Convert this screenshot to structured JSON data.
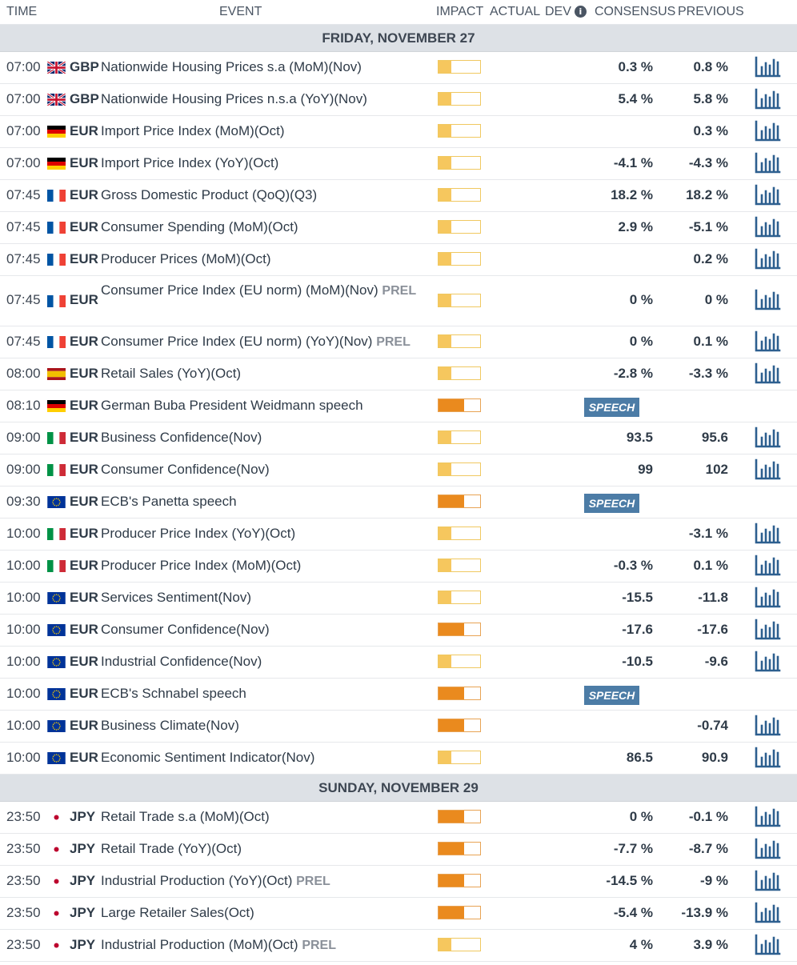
{
  "columns": {
    "time": "TIME",
    "event": "EVENT",
    "impact": "IMPACT",
    "actual": "ACTUAL",
    "dev": "DEV",
    "consensus": "CONSENSUS",
    "previous": "PREVIOUS"
  },
  "colors": {
    "impact_low": "#f6c75e",
    "impact_medium": "#ea8a1e",
    "speech_badge": "#4c7ca6",
    "chart_icon": "#2d5f8f"
  },
  "days": [
    {
      "label": "FRIDAY, NOVEMBER 27",
      "events": [
        {
          "time": "07:00",
          "flag": "gb-flag",
          "currency": "GBP",
          "name": "Nationwide Housing Prices s.a (MoM)(Nov)",
          "impact": "low",
          "consensus": "0.3 %",
          "previous": "0.8 %",
          "chart": true
        },
        {
          "time": "07:00",
          "flag": "gb-flag",
          "currency": "GBP",
          "name": "Nationwide Housing Prices n.s.a (YoY)(Nov)",
          "impact": "low",
          "consensus": "5.4 %",
          "previous": "5.8 %",
          "chart": true
        },
        {
          "time": "07:00",
          "flag": "de-flag",
          "currency": "EUR",
          "name": "Import Price Index (MoM)(Oct)",
          "impact": "low",
          "consensus": "",
          "previous": "0.3 %",
          "chart": true
        },
        {
          "time": "07:00",
          "flag": "de-flag",
          "currency": "EUR",
          "name": "Import Price Index (YoY)(Oct)",
          "impact": "low",
          "consensus": "-4.1 %",
          "previous": "-4.3 %",
          "chart": true
        },
        {
          "time": "07:45",
          "flag": "fr-flag",
          "currency": "EUR",
          "name": "Gross Domestic Product (QoQ)(Q3)",
          "impact": "low",
          "consensus": "18.2 %",
          "previous": "18.2 %",
          "chart": true
        },
        {
          "time": "07:45",
          "flag": "fr-flag",
          "currency": "EUR",
          "name": "Consumer Spending (MoM)(Oct)",
          "impact": "low",
          "consensus": "2.9 %",
          "previous": "-5.1 %",
          "chart": true
        },
        {
          "time": "07:45",
          "flag": "fr-flag",
          "currency": "EUR",
          "name": "Producer Prices (MoM)(Oct)",
          "impact": "low",
          "consensus": "",
          "previous": "0.2 %",
          "chart": true
        },
        {
          "time": "07:45",
          "flag": "fr-flag",
          "currency": "EUR",
          "name": "Consumer Price Index (EU norm) (MoM)(Nov)",
          "prel": "PREL",
          "impact": "low",
          "consensus": "0 %",
          "previous": "0 %",
          "chart": true,
          "tall": true
        },
        {
          "time": "07:45",
          "flag": "fr-flag",
          "currency": "EUR",
          "name": "Consumer Price Index (EU norm) (YoY)(Nov)",
          "prel": "PREL",
          "impact": "low",
          "consensus": "0 %",
          "previous": "0.1 %",
          "chart": true
        },
        {
          "time": "08:00",
          "flag": "es-flag",
          "currency": "EUR",
          "name": "Retail Sales (YoY)(Oct)",
          "impact": "low",
          "consensus": "-2.8 %",
          "previous": "-3.3 %",
          "chart": true
        },
        {
          "time": "08:10",
          "flag": "de-flag",
          "currency": "EUR",
          "name": "German Buba President Weidmann speech",
          "impact": "medium",
          "speech": "SPEECH",
          "consensus": "",
          "previous": "",
          "chart": false
        },
        {
          "time": "09:00",
          "flag": "it-flag",
          "currency": "EUR",
          "name": "Business Confidence(Nov)",
          "impact": "low",
          "consensus": "93.5",
          "previous": "95.6",
          "chart": true
        },
        {
          "time": "09:00",
          "flag": "it-flag",
          "currency": "EUR",
          "name": "Consumer Confidence(Nov)",
          "impact": "low",
          "consensus": "99",
          "previous": "102",
          "chart": true
        },
        {
          "time": "09:30",
          "flag": "eu-flag",
          "currency": "EUR",
          "name": "ECB's Panetta speech",
          "impact": "medium",
          "speech": "SPEECH",
          "consensus": "",
          "previous": "",
          "chart": false
        },
        {
          "time": "10:00",
          "flag": "it-flag",
          "currency": "EUR",
          "name": "Producer Price Index (YoY)(Oct)",
          "impact": "low",
          "consensus": "",
          "previous": "-3.1 %",
          "chart": true
        },
        {
          "time": "10:00",
          "flag": "it-flag",
          "currency": "EUR",
          "name": "Producer Price Index (MoM)(Oct)",
          "impact": "low",
          "consensus": "-0.3 %",
          "previous": "0.1 %",
          "chart": true
        },
        {
          "time": "10:00",
          "flag": "eu-flag",
          "currency": "EUR",
          "name": "Services Sentiment(Nov)",
          "impact": "low",
          "consensus": "-15.5",
          "previous": "-11.8",
          "chart": true
        },
        {
          "time": "10:00",
          "flag": "eu-flag",
          "currency": "EUR",
          "name": "Consumer Confidence(Nov)",
          "impact": "medium",
          "consensus": "-17.6",
          "previous": "-17.6",
          "chart": true
        },
        {
          "time": "10:00",
          "flag": "eu-flag",
          "currency": "EUR",
          "name": "Industrial Confidence(Nov)",
          "impact": "low",
          "consensus": "-10.5",
          "previous": "-9.6",
          "chart": true
        },
        {
          "time": "10:00",
          "flag": "eu-flag",
          "currency": "EUR",
          "name": "ECB's Schnabel speech",
          "impact": "medium",
          "speech": "SPEECH",
          "consensus": "",
          "previous": "",
          "chart": false
        },
        {
          "time": "10:00",
          "flag": "eu-flag",
          "currency": "EUR",
          "name": "Business Climate(Nov)",
          "impact": "medium",
          "consensus": "",
          "previous": "-0.74",
          "chart": true
        },
        {
          "time": "10:00",
          "flag": "eu-flag",
          "currency": "EUR",
          "name": "Economic Sentiment Indicator(Nov)",
          "impact": "low",
          "consensus": "86.5",
          "previous": "90.9",
          "chart": true
        }
      ]
    },
    {
      "label": "SUNDAY, NOVEMBER 29",
      "events": [
        {
          "time": "23:50",
          "flag": "jp-flag",
          "currency": "JPY",
          "name": "Retail Trade s.a (MoM)(Oct)",
          "impact": "medium",
          "consensus": "0 %",
          "previous": "-0.1 %",
          "chart": true
        },
        {
          "time": "23:50",
          "flag": "jp-flag",
          "currency": "JPY",
          "name": "Retail Trade (YoY)(Oct)",
          "impact": "medium",
          "consensus": "-7.7 %",
          "previous": "-8.7 %",
          "chart": true
        },
        {
          "time": "23:50",
          "flag": "jp-flag",
          "currency": "JPY",
          "name": "Industrial Production (YoY)(Oct)",
          "prel": "PREL",
          "impact": "medium",
          "consensus": "-14.5 %",
          "previous": "-9 %",
          "chart": true
        },
        {
          "time": "23:50",
          "flag": "jp-flag",
          "currency": "JPY",
          "name": "Large Retailer Sales(Oct)",
          "impact": "medium",
          "consensus": "-5.4 %",
          "previous": "-13.9 %",
          "chart": true
        },
        {
          "time": "23:50",
          "flag": "jp-flag",
          "currency": "JPY",
          "name": "Industrial Production (MoM)(Oct)",
          "prel": "PREL",
          "impact": "low",
          "consensus": "4 %",
          "previous": "3.9 %",
          "chart": true
        }
      ]
    }
  ]
}
